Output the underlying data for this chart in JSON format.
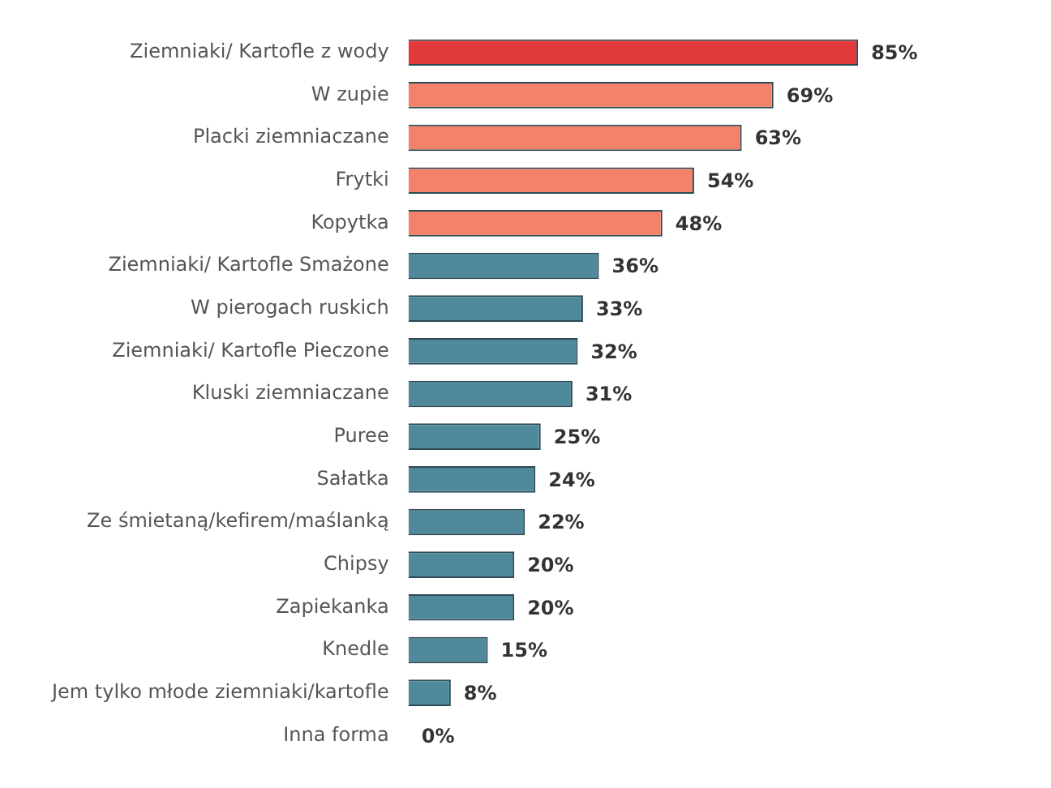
{
  "chart_data": {
    "type": "bar",
    "orientation": "horizontal",
    "categories": [
      "Ziemniaki/ Kartofle z wody",
      "W zupie",
      "Placki ziemniaczane",
      "Frytki",
      "Kopytka",
      "Ziemniaki/ Kartofle Smażone",
      "W pierogach ruskich",
      "Ziemniaki/ Kartofle Pieczone",
      "Kluski ziemniaczane",
      "Puree",
      "Sałatka",
      "Ze śmietaną/kefirem/maślanką",
      "Chipsy",
      "Zapiekanka",
      "Knedle",
      "Jem tylko młode ziemniaki/kartofle",
      "Inna forma"
    ],
    "values": [
      85,
      69,
      63,
      54,
      48,
      36,
      33,
      32,
      31,
      25,
      24,
      22,
      20,
      20,
      15,
      8,
      0
    ],
    "colors": [
      "#e23a3a",
      "#f4826a",
      "#f4826a",
      "#f4826a",
      "#f4826a",
      "#4f8a9c",
      "#4f8a9c",
      "#4f8a9c",
      "#4f8a9c",
      "#4f8a9c",
      "#4f8a9c",
      "#4f8a9c",
      "#4f8a9c",
      "#4f8a9c",
      "#4f8a9c",
      "#4f8a9c",
      "#4f8a9c"
    ],
    "value_labels": [
      "85%",
      "69%",
      "63%",
      "54%",
      "48%",
      "36%",
      "33%",
      "32%",
      "31%",
      "25%",
      "24%",
      "22%",
      "20%",
      "20%",
      "15%",
      "8%",
      "0%"
    ],
    "tick_labels": "y",
    "grid": false,
    "legend": false
  }
}
